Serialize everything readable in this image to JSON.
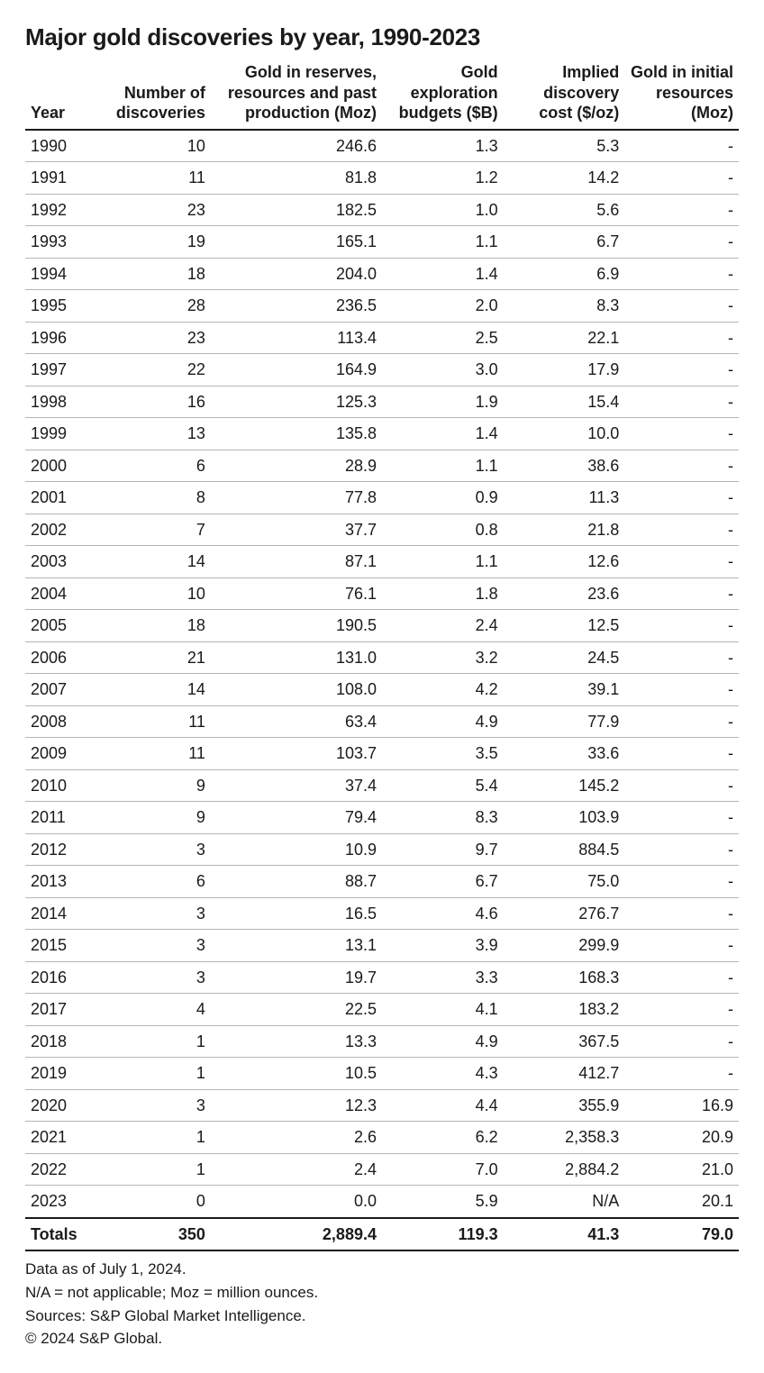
{
  "title": "Major gold discoveries by year, 1990-2023",
  "table": {
    "columns": [
      "Year",
      "Number of discoveries",
      "Gold in reserves, resources and past production (Moz)",
      "Gold exploration budgets ($B)",
      "Implied discovery cost ($/oz)",
      "Gold in initial resources (Moz)"
    ],
    "col_widths_pct": [
      10.5,
      15.5,
      24,
      17,
      17,
      16
    ],
    "header_border_color": "#1a1a1a",
    "row_border_color": "#b5b5b5",
    "font_size_pt": 13,
    "rows": [
      [
        "1990",
        "10",
        "246.6",
        "1.3",
        "5.3",
        "-"
      ],
      [
        "1991",
        "11",
        "81.8",
        "1.2",
        "14.2",
        "-"
      ],
      [
        "1992",
        "23",
        "182.5",
        "1.0",
        "5.6",
        "-"
      ],
      [
        "1993",
        "19",
        "165.1",
        "1.1",
        "6.7",
        "-"
      ],
      [
        "1994",
        "18",
        "204.0",
        "1.4",
        "6.9",
        "-"
      ],
      [
        "1995",
        "28",
        "236.5",
        "2.0",
        "8.3",
        "-"
      ],
      [
        "1996",
        "23",
        "113.4",
        "2.5",
        "22.1",
        "-"
      ],
      [
        "1997",
        "22",
        "164.9",
        "3.0",
        "17.9",
        "-"
      ],
      [
        "1998",
        "16",
        "125.3",
        "1.9",
        "15.4",
        "-"
      ],
      [
        "1999",
        "13",
        "135.8",
        "1.4",
        "10.0",
        "-"
      ],
      [
        "2000",
        "6",
        "28.9",
        "1.1",
        "38.6",
        "-"
      ],
      [
        "2001",
        "8",
        "77.8",
        "0.9",
        "11.3",
        "-"
      ],
      [
        "2002",
        "7",
        "37.7",
        "0.8",
        "21.8",
        "-"
      ],
      [
        "2003",
        "14",
        "87.1",
        "1.1",
        "12.6",
        "-"
      ],
      [
        "2004",
        "10",
        "76.1",
        "1.8",
        "23.6",
        "-"
      ],
      [
        "2005",
        "18",
        "190.5",
        "2.4",
        "12.5",
        "-"
      ],
      [
        "2006",
        "21",
        "131.0",
        "3.2",
        "24.5",
        "-"
      ],
      [
        "2007",
        "14",
        "108.0",
        "4.2",
        "39.1",
        "-"
      ],
      [
        "2008",
        "11",
        "63.4",
        "4.9",
        "77.9",
        "-"
      ],
      [
        "2009",
        "11",
        "103.7",
        "3.5",
        "33.6",
        "-"
      ],
      [
        "2010",
        "9",
        "37.4",
        "5.4",
        "145.2",
        "-"
      ],
      [
        "2011",
        "9",
        "79.4",
        "8.3",
        "103.9",
        "-"
      ],
      [
        "2012",
        "3",
        "10.9",
        "9.7",
        "884.5",
        "-"
      ],
      [
        "2013",
        "6",
        "88.7",
        "6.7",
        "75.0",
        "-"
      ],
      [
        "2014",
        "3",
        "16.5",
        "4.6",
        "276.7",
        "-"
      ],
      [
        "2015",
        "3",
        "13.1",
        "3.9",
        "299.9",
        "-"
      ],
      [
        "2016",
        "3",
        "19.7",
        "3.3",
        "168.3",
        "-"
      ],
      [
        "2017",
        "4",
        "22.5",
        "4.1",
        "183.2",
        "-"
      ],
      [
        "2018",
        "1",
        "13.3",
        "4.9",
        "367.5",
        "-"
      ],
      [
        "2019",
        "1",
        "10.5",
        "4.3",
        "412.7",
        "-"
      ],
      [
        "2020",
        "3",
        "12.3",
        "4.4",
        "355.9",
        "16.9"
      ],
      [
        "2021",
        "1",
        "2.6",
        "6.2",
        "2,358.3",
        "20.9"
      ],
      [
        "2022",
        "1",
        "2.4",
        "7.0",
        "2,884.2",
        "21.0"
      ],
      [
        "2023",
        "0",
        "0.0",
        "5.9",
        "N/A",
        "20.1"
      ]
    ],
    "totals": [
      "Totals",
      "350",
      "2,889.4",
      "119.3",
      "41.3",
      "79.0"
    ]
  },
  "footnotes": [
    "Data as of July 1, 2024.",
    "N/A = not applicable; Moz = million ounces.",
    "Sources: S&P Global Market Intelligence.",
    "© 2024 S&P Global."
  ]
}
